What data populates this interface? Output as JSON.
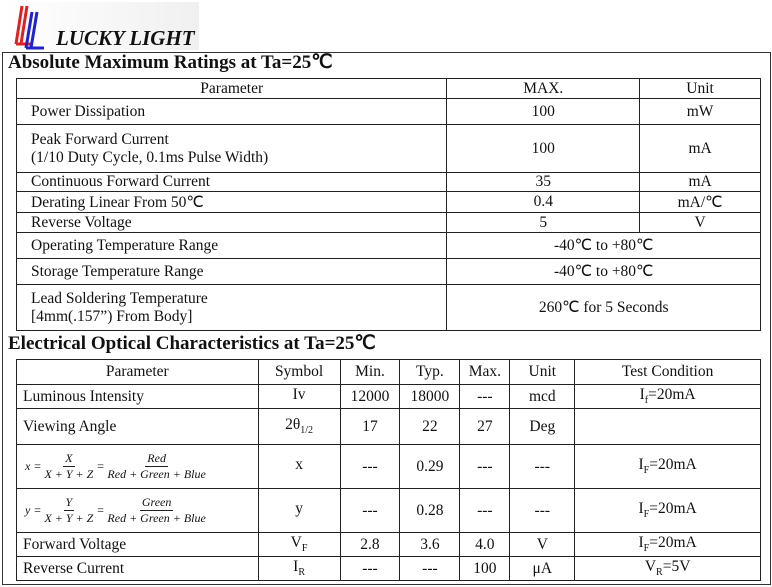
{
  "brand": "LUCKY LIGHT",
  "amr": {
    "title": "Absolute Maximum Ratings at Ta=25℃",
    "headers": [
      "Parameter",
      "MAX.",
      "Unit"
    ],
    "rows": [
      {
        "p": [
          "Power Dissipation"
        ],
        "max": "100",
        "unit": "mW"
      },
      {
        "p": [
          "Peak Forward Current",
          "(1/10 Duty Cycle, 0.1ms Pulse Width)"
        ],
        "max": "100",
        "unit": "mA"
      },
      {
        "p": [
          "Continuous Forward Current"
        ],
        "max": "35",
        "unit": "mA"
      },
      {
        "p": [
          "Derating Linear From 50℃"
        ],
        "max": "0.4",
        "unit": "mA/℃"
      },
      {
        "p": [
          "Reverse Voltage"
        ],
        "max": "5",
        "unit": "V"
      },
      {
        "p": [
          "Operating Temperature Range"
        ],
        "span": "-40℃ to +80℃"
      },
      {
        "p": [
          "Storage Temperature Range"
        ],
        "span": "-40℃ to +80℃"
      },
      {
        "p": [
          "Lead Soldering Temperature",
          "[4mm(.157”) From Body]"
        ],
        "span": "260℃ for 5 Seconds"
      }
    ]
  },
  "eoc": {
    "title": "Electrical Optical Characteristics at Ta=25℃",
    "headers": [
      "Parameter",
      "Symbol",
      "Min.",
      "Typ.",
      "Max.",
      "Unit",
      "Test Condition"
    ],
    "rows": [
      {
        "p": "Luminous Intensity",
        "sym": "Iv",
        "sub": "",
        "min": "12000",
        "typ": "18000",
        "max": "---",
        "unit": "mcd",
        "tc": "I",
        "tcsub": "f",
        "tcv": "=20mA"
      },
      {
        "p": "Viewing Angle",
        "sym": "2θ",
        "sub": "1/2",
        "min": "17",
        "typ": "22",
        "max": "27",
        "unit": "Deg",
        "tc": "",
        "tcsub": "",
        "tcv": ""
      },
      {
        "formula": {
          "lhs": "x",
          "num1": "X",
          "den1": "X + Y + Z",
          "num2": "Red",
          "den2": "Red + Green + Blue"
        },
        "sym": "x",
        "sub": "",
        "min": "---",
        "typ": "0.29",
        "max": "---",
        "unit": "---",
        "tc": "I",
        "tcsub": "F",
        "tcv": "=20mA"
      },
      {
        "formula": {
          "lhs": "y",
          "num1": "Y",
          "den1": "X + Y + Z",
          "num2": "Green",
          "den2": "Red + Green + Blue"
        },
        "sym": "y",
        "sub": "",
        "min": "---",
        "typ": "0.28",
        "max": "---",
        "unit": "---",
        "tc": "I",
        "tcsub": "F",
        "tcv": "=20mA"
      },
      {
        "p": "Forward Voltage",
        "sym": "V",
        "sub": "F",
        "min": "2.8",
        "typ": "3.6",
        "max": "4.0",
        "unit": "V",
        "tc": "I",
        "tcsub": "F",
        "tcv": "=20mA"
      },
      {
        "p": "Reverse Current",
        "sym": "I",
        "sub": "R",
        "min": "---",
        "typ": "---",
        "max": "100",
        "unit": "μA",
        "tc": "V",
        "tcsub": "R",
        "tcv": "=5V"
      }
    ]
  }
}
